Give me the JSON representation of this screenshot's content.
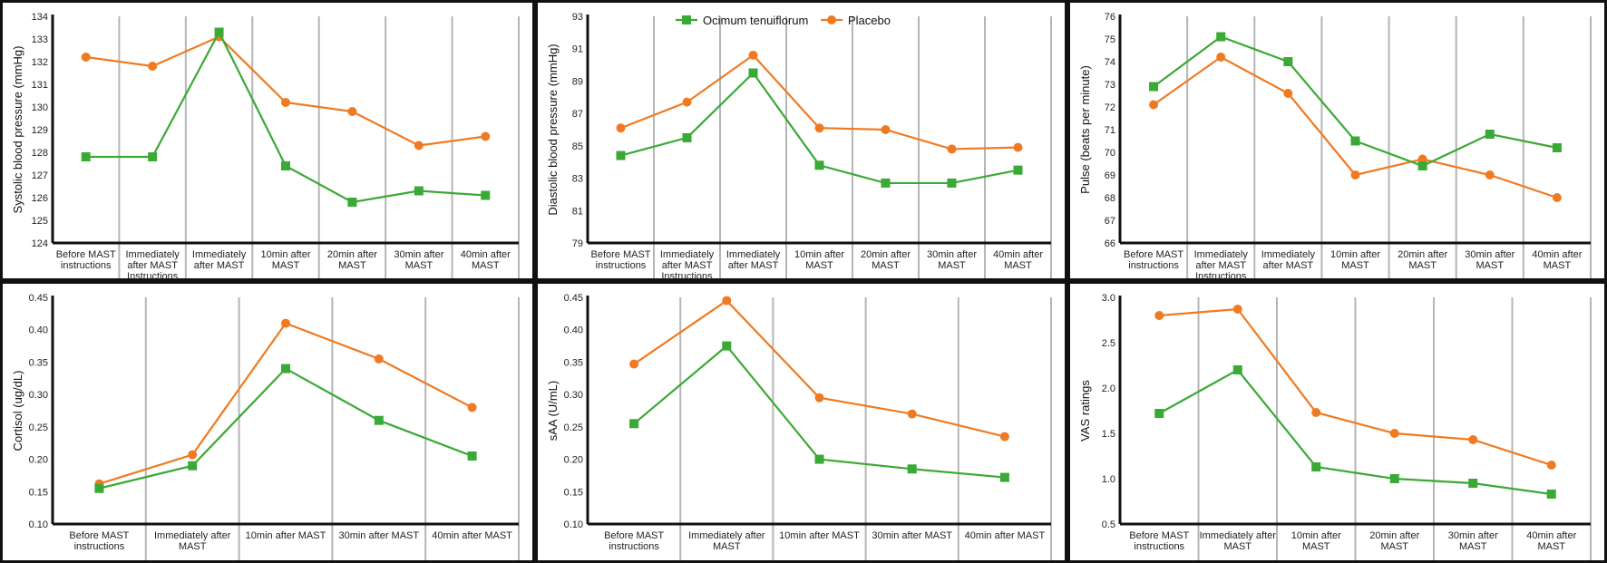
{
  "legend": {
    "series": [
      "Ocimum tenuiflorum",
      "Placebo"
    ]
  },
  "colors": {
    "ocimum": "#3aa935",
    "placebo": "#f07a22"
  },
  "chart_data": [
    {
      "type": "line",
      "ylabel": "Systolic blood pressure (mmHg)",
      "ylim": [
        124,
        134
      ],
      "yticks": [
        124,
        125,
        126,
        127,
        128,
        129,
        130,
        131,
        132,
        133,
        134
      ],
      "ydec": 0,
      "categories": [
        "Before MAST\ninstructions",
        "Immediately\nafter MAST\nInstructions",
        "Immediately\nafter MAST",
        "10min after\nMAST",
        "20min after\nMAST",
        "30min after\nMAST",
        "40min after\nMAST"
      ],
      "series": [
        {
          "name": "Ocimum tenuiflorum",
          "values": [
            127.8,
            127.8,
            133.3,
            127.4,
            125.8,
            126.3,
            126.1
          ]
        },
        {
          "name": "Placebo",
          "values": [
            132.2,
            131.8,
            133.1,
            130.2,
            129.8,
            128.3,
            128.7
          ]
        }
      ]
    },
    {
      "type": "line",
      "ylabel": "Diastolic blood pressure (mmHg)",
      "ylim": [
        79,
        93
      ],
      "yticks": [
        79,
        81,
        83,
        85,
        87,
        89,
        91,
        93
      ],
      "ydec": 0,
      "categories": [
        "Before MAST\ninstructions",
        "Immediately\nafter MAST\nInstructions",
        "Immediately\nafter MAST",
        "10min after\nMAST",
        "20min after\nMAST",
        "30min after\nMAST",
        "40min after\nMAST"
      ],
      "series": [
        {
          "name": "Ocimum tenuiflorum",
          "values": [
            84.4,
            85.5,
            89.5,
            83.8,
            82.7,
            82.7,
            83.5
          ]
        },
        {
          "name": "Placebo",
          "values": [
            86.1,
            87.7,
            90.6,
            86.1,
            86.0,
            84.8,
            84.9
          ]
        }
      ]
    },
    {
      "type": "line",
      "ylabel": "Pulse (beats per minute)",
      "ylim": [
        66,
        76
      ],
      "yticks": [
        66,
        67,
        68,
        69,
        70,
        71,
        72,
        73,
        74,
        75,
        76
      ],
      "ydec": 0,
      "categories": [
        "Before MAST\ninstructions",
        "Immediately\nafter MAST\nInstructions",
        "Immediately\nafter MAST",
        "10min after\nMAST",
        "20min after\nMAST",
        "30min after\nMAST",
        "40min after\nMAST"
      ],
      "series": [
        {
          "name": "Ocimum tenuiflorum",
          "values": [
            72.9,
            75.1,
            74.0,
            70.5,
            69.4,
            70.8,
            70.2
          ]
        },
        {
          "name": "Placebo",
          "values": [
            72.1,
            74.2,
            72.6,
            69.0,
            69.7,
            69.0,
            68.0
          ]
        }
      ]
    },
    {
      "type": "line",
      "ylabel": "Cortisol (ug/dL)",
      "ylim": [
        0.1,
        0.45
      ],
      "yticks": [
        0.1,
        0.15,
        0.2,
        0.25,
        0.3,
        0.35,
        0.4,
        0.45
      ],
      "ydec": 2,
      "categories": [
        "Before MAST\ninstructions",
        "Immediately after\nMAST",
        "10min after MAST",
        "30min after MAST",
        "40min after MAST"
      ],
      "series": [
        {
          "name": "Ocimum tenuiflorum",
          "values": [
            0.155,
            0.19,
            0.34,
            0.26,
            0.205
          ]
        },
        {
          "name": "Placebo",
          "values": [
            0.162,
            0.207,
            0.41,
            0.355,
            0.28
          ]
        }
      ]
    },
    {
      "type": "line",
      "ylabel": "sAA (U/mL)",
      "ylim": [
        0.1,
        0.45
      ],
      "yticks": [
        0.1,
        0.15,
        0.2,
        0.25,
        0.3,
        0.35,
        0.4,
        0.45
      ],
      "ydec": 2,
      "categories": [
        "Before MAST\ninstructions",
        "Immediately after\nMAST",
        "10min after MAST",
        "30min after MAST",
        "40min after MAST"
      ],
      "series": [
        {
          "name": "Ocimum tenuiflorum",
          "values": [
            0.255,
            0.375,
            0.2,
            0.185,
            0.172
          ]
        },
        {
          "name": "Placebo",
          "values": [
            0.347,
            0.445,
            0.295,
            0.27,
            0.235
          ]
        }
      ]
    },
    {
      "type": "line",
      "ylabel": "VAS ratings",
      "ylim": [
        0.5,
        3.0
      ],
      "yticks": [
        0.5,
        1.0,
        1.5,
        2.0,
        2.5,
        3.0
      ],
      "ydec": 1,
      "categories": [
        "Before MAST\ninstructions",
        "Immediately after\nMAST",
        "10min after\nMAST",
        "20min after\nMAST",
        "30min after\nMAST",
        "40min after\nMAST"
      ],
      "series": [
        {
          "name": "Ocimum tenuiflorum",
          "values": [
            1.72,
            2.2,
            1.13,
            1.0,
            0.95,
            0.83
          ]
        },
        {
          "name": "Placebo",
          "values": [
            2.8,
            2.87,
            1.73,
            1.5,
            1.43,
            1.15
          ]
        }
      ]
    }
  ]
}
